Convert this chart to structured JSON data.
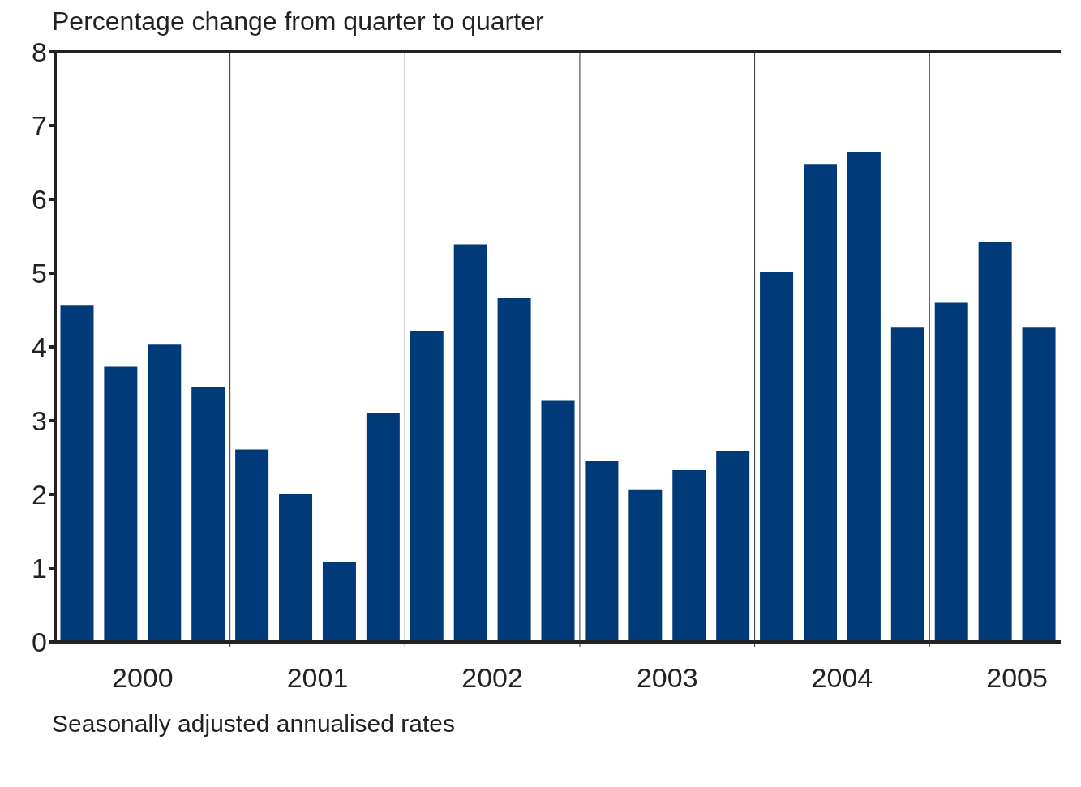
{
  "chart_data": {
    "type": "bar",
    "title": "Percentage change from quarter to quarter",
    "annotations": [
      "Seasonally adjusted annualised rates"
    ],
    "categories": [
      null,
      "2000",
      null,
      null,
      null,
      "2001",
      null,
      null,
      null,
      "2002",
      null,
      null,
      null,
      "2003",
      null,
      null,
      null,
      "2004",
      null,
      null,
      null,
      "2005",
      null
    ],
    "values": [
      4.57,
      3.73,
      4.03,
      3.45,
      2.61,
      2.01,
      1.08,
      3.1,
      4.22,
      5.39,
      4.66,
      3.27,
      2.45,
      2.07,
      2.33,
      2.59,
      5.01,
      6.48,
      6.64,
      4.26,
      4.6,
      5.42,
      4.26
    ],
    "color": "#003a78",
    "ylim": [
      0,
      8
    ],
    "yticks": [
      0,
      1,
      2,
      3,
      4,
      5,
      6,
      7,
      8
    ],
    "grid": "x"
  }
}
